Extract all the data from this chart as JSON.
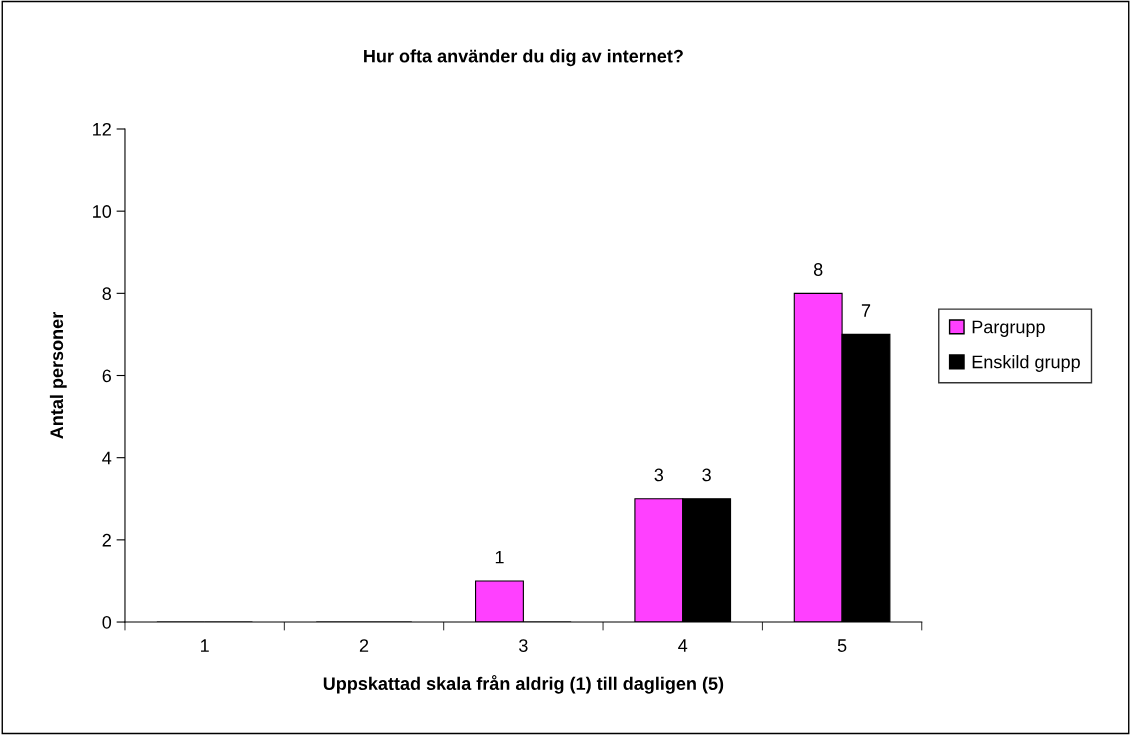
{
  "chart_data": {
    "type": "bar",
    "title": "Hur ofta använder du dig av internet?",
    "xlabel": "Uppskattad skala från aldrig (1) till dagligen (5)",
    "ylabel": "Antal personer",
    "categories": [
      "1",
      "2",
      "3",
      "4",
      "5"
    ],
    "series": [
      {
        "name": "Pargrupp",
        "color": "#ff40ff",
        "values": [
          0,
          0,
          1,
          3,
          8
        ],
        "value_labels": [
          null,
          null,
          "1",
          "3",
          "8"
        ]
      },
      {
        "name": "Enskild grupp",
        "color": "#000000",
        "values": [
          0,
          0,
          0,
          3,
          7
        ],
        "value_labels": [
          null,
          null,
          null,
          "3",
          "7"
        ]
      }
    ],
    "ylim": [
      0,
      12
    ],
    "yticks": [
      0,
      2,
      4,
      6,
      8,
      10,
      12
    ],
    "grid": false,
    "legend": "right"
  }
}
